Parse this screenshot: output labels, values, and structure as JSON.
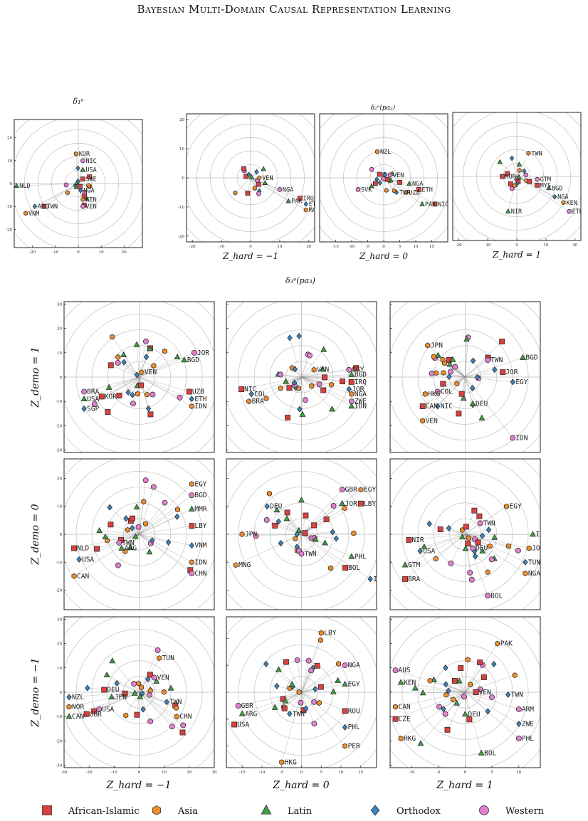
{
  "page": {
    "header": "Bayesian Multi-Domain Causal Representation Learning"
  },
  "figure": {
    "section_titles": {
      "delta1": "δ₁ᵉ",
      "delta2": "δ₂ᵉ(pa₂)",
      "delta3": "δ₃ᵉ(pa₃)"
    },
    "column_labels": [
      "Z_hard = −1",
      "Z_hard = 0",
      "Z_hard = 1"
    ],
    "row_labels": [
      "Z_demo = 1",
      "Z_demo = 0",
      "Z_demo = −1"
    ],
    "legend": [
      {
        "name": "African-Islamic",
        "shape": "square",
        "color": "#d9413f"
      },
      {
        "name": "Asia",
        "shape": "hexagon",
        "color": "#f08c2c"
      },
      {
        "name": "Latin",
        "shape": "triangle",
        "color": "#3e9e45"
      },
      {
        "name": "Orthodox",
        "shape": "diamond",
        "color": "#3a85c0"
      },
      {
        "name": "Western",
        "shape": "circle",
        "color": "#e27fcd"
      }
    ]
  },
  "chart_data": [
    {
      "id": "d1",
      "type": "scatter",
      "title": "δ₁ᵉ",
      "xlim": [
        -28,
        28
      ],
      "ylim": [
        -28,
        28
      ],
      "xticks": [
        -20,
        -10,
        0,
        10,
        20
      ],
      "yticks": [
        -20,
        -10,
        0,
        10,
        20
      ],
      "labels": [
        [
          "KOR",
          -1,
          13
        ],
        [
          "NIC",
          2,
          10
        ],
        [
          "USA",
          2,
          6
        ],
        [
          "SWE",
          2,
          2
        ],
        [
          "NGA",
          1,
          -3
        ],
        [
          "KEN",
          2,
          -7
        ],
        [
          "VEN",
          2,
          -10
        ],
        [
          "NLD",
          -27,
          -1
        ],
        [
          "TWN",
          -15,
          -10
        ],
        [
          "ARG",
          -19,
          -10
        ],
        [
          "VNM",
          -23,
          -13
        ]
      ]
    },
    {
      "id": "d2a",
      "type": "scatter",
      "xlabel": "Z_hard = −1",
      "xlim": [
        -22,
        22
      ],
      "ylim": [
        -22,
        22
      ],
      "xticks": [
        -20,
        -10,
        0,
        10,
        20
      ],
      "yticks": [
        -20,
        -10,
        0,
        10,
        20
      ],
      "labels": [
        [
          "VEN",
          3,
          0
        ],
        [
          "NGA",
          10,
          -4
        ],
        [
          "PAK",
          13,
          -8
        ],
        [
          "IRQ",
          17,
          -7
        ],
        [
          "ETH",
          19,
          -9
        ],
        [
          "MAR",
          19,
          -11
        ]
      ]
    },
    {
      "id": "d2b",
      "type": "scatter",
      "xlabel": "Z_hard = 0",
      "xlim": [
        -20,
        20
      ],
      "ylim": [
        -22,
        22
      ],
      "xticks": [
        -15,
        -10,
        -5,
        0,
        5,
        10,
        15
      ],
      "yticks": [],
      "labels": [
        [
          "NZL",
          -2,
          9
        ],
        [
          "VEN",
          2,
          1
        ],
        [
          "NGA",
          8,
          -2
        ],
        [
          "ETH",
          11,
          -4
        ],
        [
          "TUR",
          4,
          -5
        ],
        [
          "UZB",
          7,
          -5
        ],
        [
          "SVK",
          -8,
          -4
        ],
        [
          "PAK",
          12,
          -9
        ],
        [
          "NIC",
          16,
          -9
        ]
      ]
    },
    {
      "id": "d2c",
      "type": "scatter",
      "xlabel": "Z_hard = 1",
      "xlim": [
        -22,
        22
      ],
      "ylim": [
        -22,
        22
      ],
      "xticks": [
        -20,
        -10,
        0,
        10,
        20
      ],
      "yticks": [],
      "labels": [
        [
          "TWN",
          4,
          8
        ],
        [
          "GTM",
          7,
          -1
        ],
        [
          "BGD",
          11,
          -4
        ],
        [
          "MYS",
          7,
          -3
        ],
        [
          "NGA",
          13,
          -7
        ],
        [
          "KEN",
          16,
          -9
        ],
        [
          "ETH",
          18,
          -12
        ],
        [
          "NIR",
          -3,
          -12
        ],
        [
          "KOR",
          -5,
          0
        ]
      ]
    },
    {
      "id": "r0c0",
      "type": "scatter",
      "xlim": [
        -30,
        30
      ],
      "ylim": [
        -31,
        31
      ],
      "labels": [
        [
          "VEN",
          1,
          2
        ],
        [
          "JOR",
          22,
          10
        ],
        [
          "BGD",
          18,
          7
        ],
        [
          "UZB",
          20,
          -6
        ],
        [
          "ETH",
          21,
          -9
        ],
        [
          "IDN",
          21,
          -12
        ],
        [
          "BRA",
          -22,
          -6
        ],
        [
          "USA",
          -22,
          -9
        ],
        [
          "KOR",
          -15,
          -8
        ],
        [
          "SGP",
          -22,
          -13
        ]
      ]
    },
    {
      "id": "r0c1",
      "type": "scatter",
      "xlim": [
        -30,
        30
      ],
      "ylim": [
        -31,
        31
      ],
      "labels": [
        [
          "VEN",
          5,
          3
        ],
        [
          "EGY",
          19,
          3
        ],
        [
          "BGD",
          20,
          1
        ],
        [
          "IRQ",
          20,
          -2
        ],
        [
          "JOR",
          19,
          -5
        ],
        [
          "NGA",
          20,
          -7
        ],
        [
          "ZWE",
          20,
          -10
        ],
        [
          "IDN",
          20,
          -12
        ],
        [
          "NIC",
          -24,
          -5
        ],
        [
          "COL",
          -20,
          -7
        ],
        [
          "BRA",
          -21,
          -10
        ]
      ]
    },
    {
      "id": "r0c2",
      "type": "scatter",
      "xlim": [
        -30,
        30
      ],
      "ylim": [
        -31,
        31
      ],
      "labels": [
        [
          "JPN",
          -15,
          13
        ],
        [
          "TWN",
          9,
          7
        ],
        [
          "BGD",
          23,
          8
        ],
        [
          "JOR",
          15,
          2
        ],
        [
          "EGY",
          19,
          -2
        ],
        [
          "HKG",
          -16,
          -7
        ],
        [
          "COL",
          -11,
          -6
        ],
        [
          "DEU",
          3,
          -11
        ],
        [
          "CAN",
          -17,
          -12
        ],
        [
          "NIC",
          -11,
          -12
        ],
        [
          "VEN",
          -17,
          -18
        ],
        [
          "IDN",
          19,
          -25
        ]
      ]
    },
    {
      "id": "r1c0",
      "type": "scatter",
      "xlim": [
        -30,
        30
      ],
      "ylim": [
        -27,
        27
      ],
      "labels": [
        [
          "EGY",
          21,
          18
        ],
        [
          "BGD",
          21,
          14
        ],
        [
          "MMR",
          21,
          9
        ],
        [
          "LBY",
          21,
          3
        ],
        [
          "VNM",
          21,
          -4
        ],
        [
          "IDN",
          21,
          -10
        ],
        [
          "CHN",
          21,
          -14
        ],
        [
          "ARG",
          -7,
          -5
        ],
        [
          "NLD",
          -26,
          -5
        ],
        [
          "USA",
          -24,
          -9
        ],
        [
          "CAN",
          -26,
          -15
        ],
        [
          "TWN",
          -8,
          -3
        ]
      ]
    },
    {
      "id": "r1c1",
      "type": "scatter",
      "xlim": [
        -24,
        24
      ],
      "ylim": [
        -27,
        27
      ],
      "labels": [
        [
          "EGY",
          19,
          16
        ],
        [
          "GBR",
          13,
          16
        ],
        [
          "JOR",
          13,
          11
        ],
        [
          "LBY",
          19,
          11
        ],
        [
          "DEU",
          -11,
          10
        ],
        [
          "JPN",
          -19,
          0
        ],
        [
          "TWN",
          0,
          -7
        ],
        [
          "PHL",
          16,
          -8
        ],
        [
          "BOL",
          14,
          -12
        ],
        [
          "IDN",
          22,
          -16
        ],
        [
          "MNG",
          -21,
          -11
        ]
      ]
    },
    {
      "id": "r1c2",
      "type": "scatter",
      "xlim": [
        -20,
        20
      ],
      "ylim": [
        -27,
        27
      ],
      "labels": [
        [
          "EGY",
          11,
          10
        ],
        [
          "TWN",
          4,
          4
        ],
        [
          "IRQ",
          18,
          0
        ],
        [
          "NIR",
          -15,
          -2
        ],
        [
          "USA",
          -12,
          -6
        ],
        [
          "JOR",
          17,
          -5
        ],
        [
          "DEU",
          2,
          -5
        ],
        [
          "GTM",
          -16,
          -11
        ],
        [
          "BRA",
          -16,
          -16
        ],
        [
          "TUN",
          16,
          -10
        ],
        [
          "NGA",
          16,
          -14
        ],
        [
          "BOL",
          6,
          -22
        ]
      ]
    },
    {
      "id": "r2c0",
      "type": "scatter",
      "xlim": [
        -30,
        30
      ],
      "ylim": [
        -31,
        31
      ],
      "xticks": [
        -30,
        -20,
        -10,
        0,
        10,
        20,
        30
      ],
      "labels": [
        [
          "TUN",
          8,
          14
        ],
        [
          "VEN",
          6,
          6
        ],
        [
          "JPN",
          -11,
          -2
        ],
        [
          "DEU",
          -14,
          1
        ],
        [
          "NZL",
          -28,
          -2
        ],
        [
          "NOR",
          -28,
          -6
        ],
        [
          "USA",
          -16,
          -7
        ],
        [
          "CAN",
          -28,
          -10
        ],
        [
          "GBR",
          -21,
          -9
        ],
        [
          "TWN",
          11,
          -4
        ],
        [
          "CHN",
          15,
          -10
        ]
      ]
    },
    {
      "id": "r2c1",
      "type": "scatter",
      "xlim": [
        -19,
        19
      ],
      "ylim": [
        -28,
        28
      ],
      "xticks": [
        -15,
        -10,
        -5,
        0,
        5,
        10,
        15
      ],
      "labels": [
        [
          "LBY",
          5,
          22
        ],
        [
          "NGA",
          11,
          10
        ],
        [
          "EGY",
          11,
          3
        ],
        [
          "ROU",
          11,
          -7
        ],
        [
          "PHL",
          11,
          -13
        ],
        [
          "PER",
          11,
          -20
        ],
        [
          "GBR",
          -16,
          -5
        ],
        [
          "ARG",
          -15,
          -8
        ],
        [
          "USA",
          -17,
          -12
        ],
        [
          "TWN",
          -3,
          -8
        ],
        [
          "HKG",
          -5,
          -26
        ]
      ]
    },
    {
      "id": "r2c2",
      "type": "scatter",
      "xlim": [
        -14,
        14
      ],
      "ylim": [
        -31,
        31
      ],
      "xticks": [
        -10,
        -5,
        0,
        5,
        10
      ],
      "labels": [
        [
          "PAK",
          6,
          20
        ],
        [
          "AUS",
          -13,
          9
        ],
        [
          "KEN",
          -12,
          4
        ],
        [
          "VEN",
          2,
          0
        ],
        [
          "TWN",
          8,
          -1
        ],
        [
          "CAN",
          -13,
          -6
        ],
        [
          "ARM",
          10,
          -7
        ],
        [
          "DEU",
          0,
          -9
        ],
        [
          "CZE",
          -13,
          -11
        ],
        [
          "ZWE",
          10,
          -13
        ],
        [
          "HKG",
          -12,
          -19
        ],
        [
          "PHL",
          10,
          -19
        ],
        [
          "BOL",
          3,
          -25
        ]
      ]
    }
  ]
}
